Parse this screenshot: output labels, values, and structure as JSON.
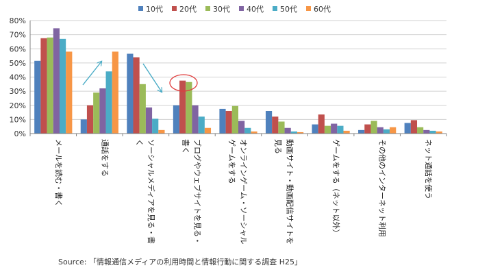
{
  "chart_data": {
    "type": "bar",
    "categories": [
      [
        "メールを読む・書く"
      ],
      [
        "通話をする"
      ],
      [
        "ソーシャルメディアを見る・書",
        "く"
      ],
      [
        "ブログやウェブサイトを見る・",
        "書く"
      ],
      [
        "オンラインゲーム・ソーシャル",
        "ゲームをする"
      ],
      [
        "動画サイト・動画配信サイトを",
        "見る"
      ],
      [
        "ゲームをする（ネット以外）"
      ],
      [
        "その他のインターネット利用"
      ],
      [
        "ネット通話を使う"
      ]
    ],
    "series": [
      {
        "name": "10代",
        "color": "#4f81bd",
        "values": [
          51.5,
          10,
          56.5,
          20,
          17.5,
          16,
          6.5,
          2.5,
          7.5
        ]
      },
      {
        "name": "20代",
        "color": "#c0504d",
        "values": [
          67.5,
          20,
          54,
          37.5,
          16,
          12,
          13.5,
          6.5,
          9.5
        ]
      },
      {
        "name": "30代",
        "color": "#9bbb59",
        "values": [
          68,
          29,
          35,
          36.5,
          19.5,
          8.5,
          5.5,
          9,
          4.5
        ]
      },
      {
        "name": "40代",
        "color": "#8064a2",
        "values": [
          74.5,
          32,
          18.5,
          20,
          9,
          4,
          7,
          4.5,
          2.5
        ]
      },
      {
        "name": "50代",
        "color": "#4bacc6",
        "values": [
          67,
          44,
          10.5,
          12,
          4,
          1.5,
          5.5,
          3,
          2
        ]
      },
      {
        "name": "60代",
        "color": "#f79646",
        "values": [
          58,
          58,
          2.5,
          4,
          1.5,
          1,
          2,
          4.5,
          1.5
        ]
      }
    ],
    "y_ticks": [
      "0%",
      "10%",
      "20%",
      "30%",
      "40%",
      "50%",
      "60%",
      "70%",
      "80%"
    ],
    "ylim": [
      0,
      80
    ],
    "legend_position": "top",
    "grid": true,
    "annotations": {
      "arrow_color": "#4bacc6",
      "circle_color": "#e03c3c"
    }
  },
  "source_text": "Source: 「情報通信メディアの利用時間と情報行動に関する調査 H25」"
}
